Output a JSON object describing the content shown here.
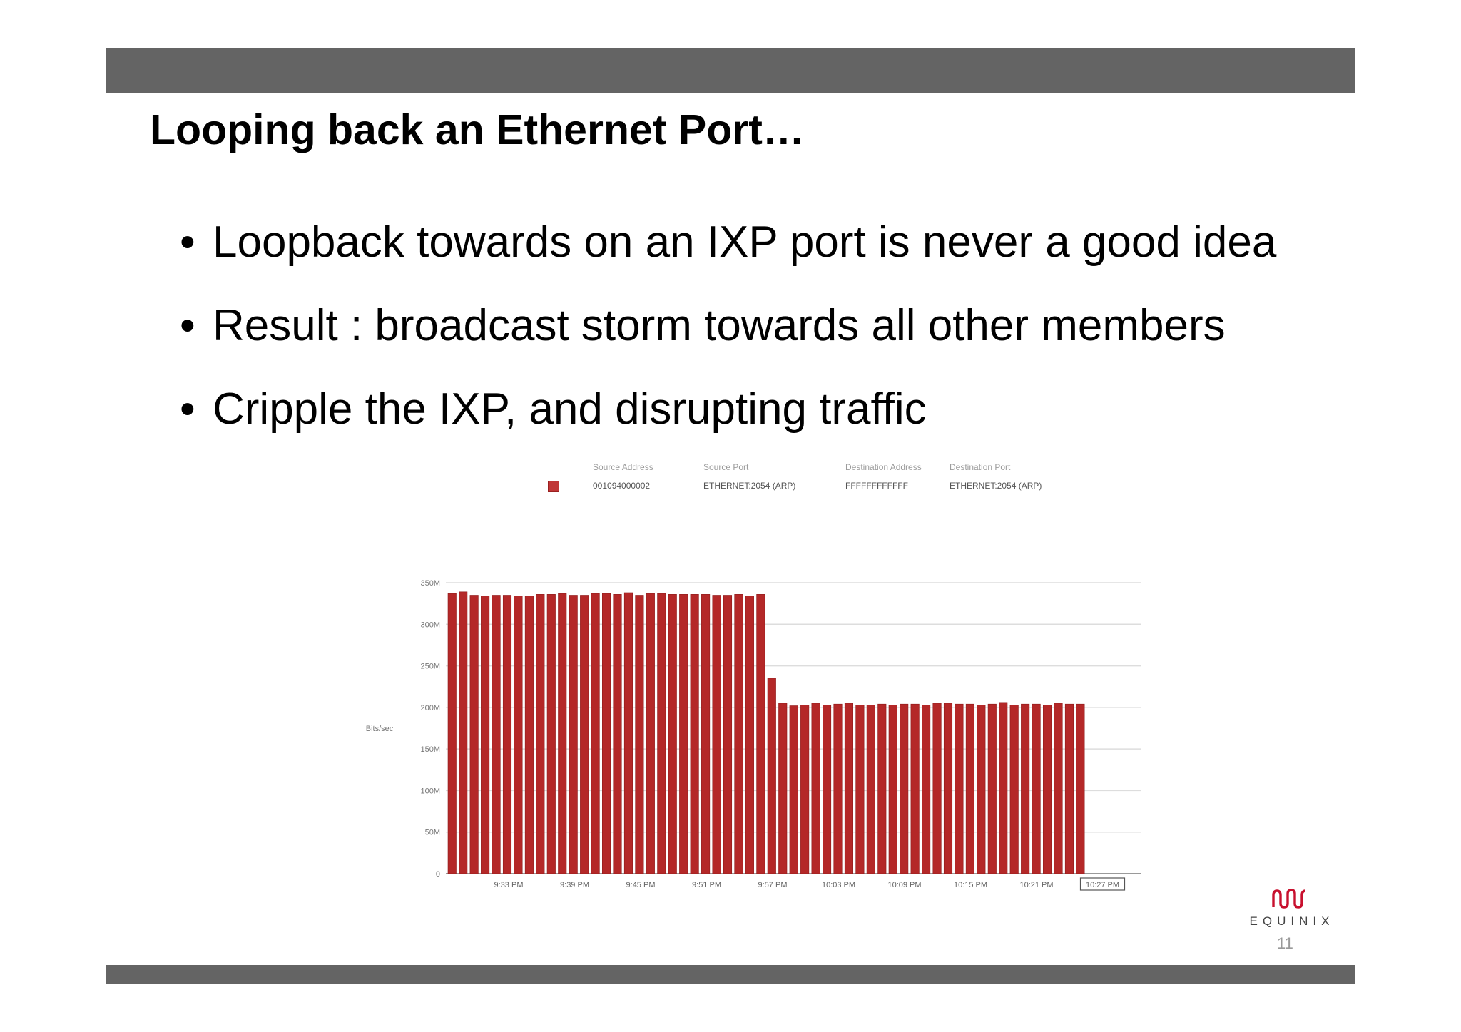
{
  "slide": {
    "title": "Looping back an Ethernet Port…",
    "bullets": [
      "Loopback towards on an IXP port is never a good idea",
      "Result : broadcast storm towards all other members",
      "Cripple the IXP, and disrupting traffic"
    ],
    "page_number": "11",
    "logo_text": "EQUINIX"
  },
  "legend": {
    "headers": [
      "Source Address",
      "Source Port",
      "Destination Address",
      "Destination Port"
    ],
    "row": [
      "001094000002",
      "ETHERNET:2054 (ARP)",
      "FFFFFFFFFFFF",
      "ETHERNET:2054 (ARP)"
    ]
  },
  "colors": {
    "header_bar": "#646464",
    "bar_fill": "#b42828",
    "bar_stroke": "#8e1a1a",
    "grid": "#dddddd"
  },
  "chart_data": {
    "type": "bar",
    "ylabel": "Bits/sec",
    "ylim": [
      0,
      350
    ],
    "ytick_values": [
      0,
      50,
      100,
      150,
      200,
      250,
      300,
      350
    ],
    "ytick_labels": [
      "0",
      "50M",
      "100M",
      "150M",
      "200M",
      "250M",
      "300M",
      "350M"
    ],
    "xtick_labels": [
      "9:33 PM",
      "9:39 PM",
      "9:45 PM",
      "9:51 PM",
      "9:57 PM",
      "10:03 PM",
      "10:09 PM",
      "10:15 PM",
      "10:21 PM",
      "10:27 PM"
    ],
    "highlighted_xtick": "10:27 PM",
    "grid": true,
    "values": [
      337,
      339,
      335,
      334,
      335,
      335,
      334,
      334,
      336,
      336,
      337,
      335,
      335,
      337,
      337,
      336,
      338,
      335,
      337,
      337,
      336,
      336,
      336,
      336,
      335,
      335,
      336,
      334,
      336,
      235,
      205,
      202,
      203,
      205,
      203,
      204,
      205,
      203,
      203,
      204,
      203,
      204,
      204,
      203,
      205,
      205,
      204,
      204,
      203,
      204,
      206,
      203,
      204,
      204,
      203,
      205,
      204,
      204
    ]
  }
}
